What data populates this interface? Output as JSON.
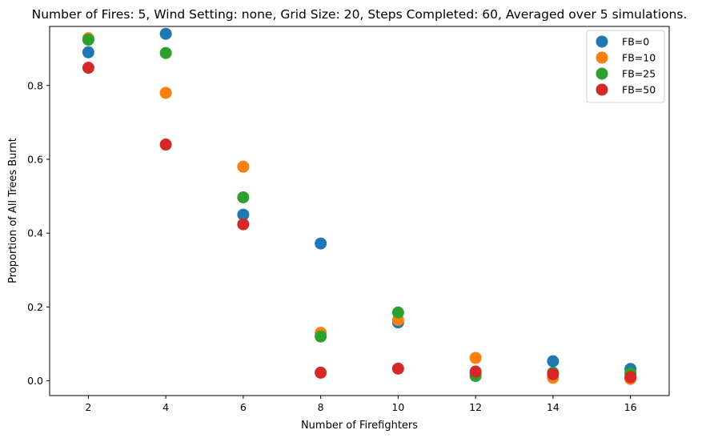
{
  "chart_data": {
    "type": "scatter",
    "title": "Number of Fires: 5, Wind Setting: none, Grid Size: 20, Steps Completed: 60, Averaged over 5 simulations.",
    "xlabel": "Number of Firefighters",
    "ylabel": "Proportion of All Trees Burnt",
    "xlim": [
      1.0,
      17.0
    ],
    "ylim": [
      -0.04,
      0.96
    ],
    "xticks": [
      2,
      4,
      6,
      8,
      10,
      12,
      14,
      16
    ],
    "yticks": [
      0.0,
      0.2,
      0.4,
      0.6,
      0.8
    ],
    "ytick_labels": [
      "0.0",
      "0.2",
      "0.4",
      "0.6",
      "0.8"
    ],
    "grid": false,
    "legend_position": "top-right",
    "x": [
      2,
      4,
      6,
      8,
      10,
      12,
      14,
      16
    ],
    "series": [
      {
        "name": "FB=0",
        "color": "#1f77b4",
        "values": [
          0.89,
          0.94,
          0.45,
          0.372,
          0.158,
          0.02,
          0.053,
          0.032
        ]
      },
      {
        "name": "FB=10",
        "color": "#ff7f0e",
        "values": [
          0.928,
          0.78,
          0.58,
          0.13,
          0.165,
          0.062,
          0.008,
          0.005
        ]
      },
      {
        "name": "FB=25",
        "color": "#2ca02c",
        "values": [
          0.924,
          0.888,
          0.497,
          0.12,
          0.185,
          0.013,
          0.022,
          0.02
        ]
      },
      {
        "name": "FB=50",
        "color": "#d62728",
        "values": [
          0.848,
          0.64,
          0.424,
          0.022,
          0.033,
          0.025,
          0.018,
          0.01
        ]
      }
    ]
  }
}
